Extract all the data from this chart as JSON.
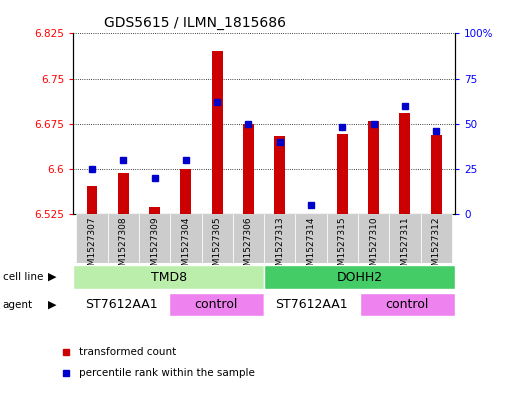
{
  "title": "GDS5615 / ILMN_1815686",
  "samples": [
    "GSM1527307",
    "GSM1527308",
    "GSM1527309",
    "GSM1527304",
    "GSM1527305",
    "GSM1527306",
    "GSM1527313",
    "GSM1527314",
    "GSM1527315",
    "GSM1527310",
    "GSM1527311",
    "GSM1527312"
  ],
  "bar_values": [
    6.572,
    6.593,
    6.537,
    6.6,
    6.795,
    6.675,
    6.655,
    6.524,
    6.658,
    6.68,
    6.693,
    6.657
  ],
  "bar_base": 6.525,
  "percentile_pct": [
    25,
    30,
    20,
    30,
    62,
    50,
    40,
    5,
    48,
    50,
    60,
    46
  ],
  "ymin": 6.525,
  "ymax": 6.825,
  "yticks": [
    6.525,
    6.6,
    6.675,
    6.75,
    6.825
  ],
  "ytick_labels": [
    "6.525",
    "6.6",
    "6.675",
    "6.75",
    "6.825"
  ],
  "y2ticks": [
    0,
    25,
    50,
    75,
    100
  ],
  "y2tick_labels": [
    "0",
    "25",
    "50",
    "75",
    "100%"
  ],
  "bar_color": "#cc0000",
  "marker_color": "#0000cc",
  "bar_width": 0.35,
  "cell_line_groups": [
    {
      "label": "TMD8",
      "start": 0,
      "end": 5,
      "color": "#bbeeaa"
    },
    {
      "label": "DOHH2",
      "start": 6,
      "end": 11,
      "color": "#44cc66"
    }
  ],
  "agent_groups": [
    {
      "label": "ST7612AA1",
      "start": 0,
      "end": 2,
      "color": "#ffffff"
    },
    {
      "label": "control",
      "start": 3,
      "end": 5,
      "color": "#ee82ee"
    },
    {
      "label": "ST7612AA1",
      "start": 6,
      "end": 8,
      "color": "#ffffff"
    },
    {
      "label": "control",
      "start": 9,
      "end": 11,
      "color": "#ee82ee"
    }
  ],
  "legend_items": [
    {
      "label": "transformed count",
      "color": "#cc0000"
    },
    {
      "label": "percentile rank within the sample",
      "color": "#0000cc"
    }
  ],
  "tick_bg": "#cccccc",
  "fig_width": 5.23,
  "fig_height": 3.93,
  "dpi": 100
}
